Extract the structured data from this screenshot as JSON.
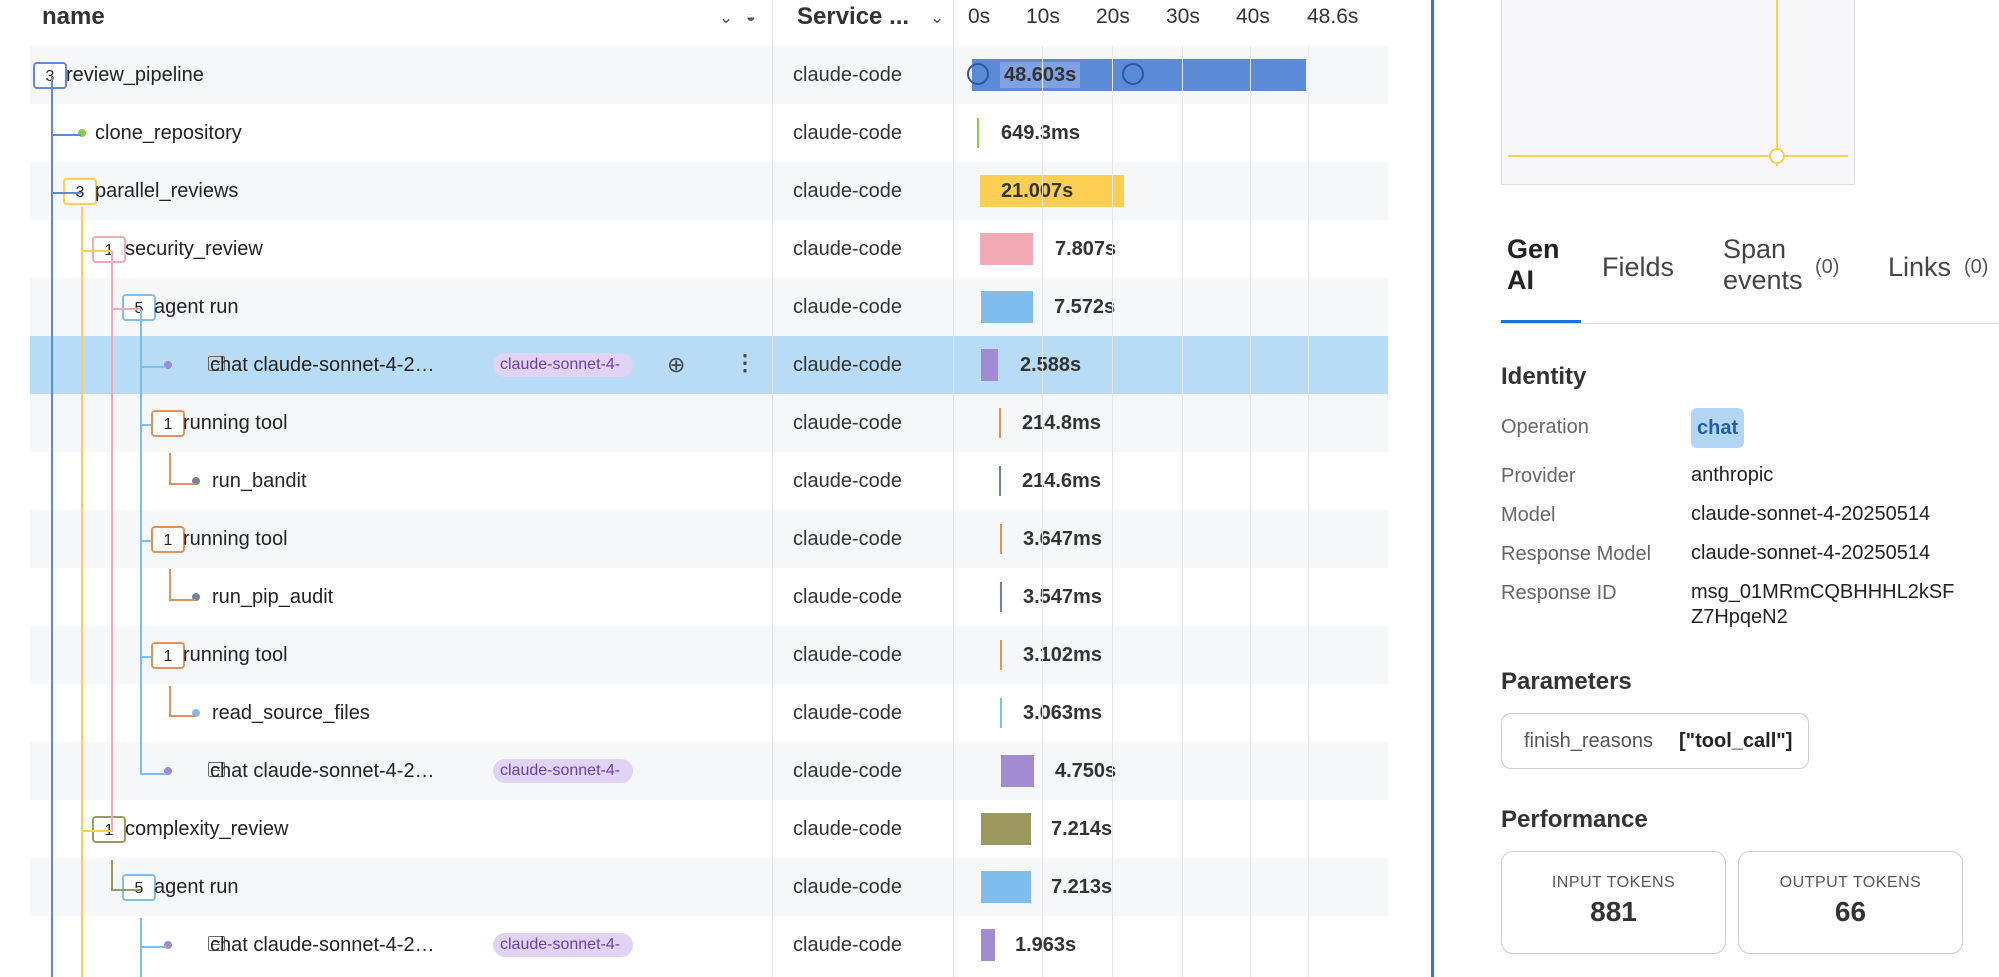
{
  "columns": {
    "name": "name",
    "service": "Service ..."
  },
  "timeline_ticks": [
    "0s",
    "10s",
    "20s",
    "30s",
    "40s",
    "48.6s"
  ],
  "rows": [
    {
      "name": "review_pipeline",
      "count": "3",
      "service": "claude-code",
      "duration": "48.603s"
    },
    {
      "name": "clone_repository",
      "service": "claude-code",
      "duration": "649.3ms"
    },
    {
      "name": "parallel_reviews",
      "count": "3",
      "service": "claude-code",
      "duration": "21.007s"
    },
    {
      "name": "security_review",
      "count": "1",
      "service": "claude-code",
      "duration": "7.807s"
    },
    {
      "name": "agent run",
      "count": "5",
      "service": "claude-code",
      "duration": "7.572s"
    },
    {
      "name": "chat claude-sonnet-4-2…",
      "chip": "claude-sonnet-4-",
      "service": "claude-code",
      "duration": "2.588s"
    },
    {
      "name": "running tool",
      "count": "1",
      "service": "claude-code",
      "duration": "214.8ms"
    },
    {
      "name": "run_bandit",
      "service": "claude-code",
      "duration": "214.6ms"
    },
    {
      "name": "running tool",
      "count": "1",
      "service": "claude-code",
      "duration": "3.647ms"
    },
    {
      "name": "run_pip_audit",
      "service": "claude-code",
      "duration": "3.547ms"
    },
    {
      "name": "running tool",
      "count": "1",
      "service": "claude-code",
      "duration": "3.102ms"
    },
    {
      "name": "read_source_files",
      "service": "claude-code",
      "duration": "3.063ms"
    },
    {
      "name": "chat claude-sonnet-4-2…",
      "chip": "claude-sonnet-4-",
      "service": "claude-code",
      "duration": "4.750s"
    },
    {
      "name": "complexity_review",
      "count": "1",
      "service": "claude-code",
      "duration": "7.214s"
    },
    {
      "name": "agent run",
      "count": "5",
      "service": "claude-code",
      "duration": "7.213s"
    },
    {
      "name": "chat claude-sonnet-4-2…",
      "chip": "claude-sonnet-4-",
      "service": "claude-code",
      "duration": "1.963s"
    }
  ],
  "colors": {
    "blue": "#5b8ad6",
    "yellow": "#fccf52",
    "pink": "#f1a9b4",
    "lightblue": "#7fbdee",
    "purple": "#a28bd0",
    "orange": "#e0915c",
    "slate": "#6f84a0",
    "olive": "#9d9760",
    "green": "#8ccf45"
  },
  "panel": {
    "tabs": [
      {
        "label": "Gen AI",
        "active": true
      },
      {
        "label": "Fields"
      },
      {
        "label": "Span events",
        "count": "(0)"
      },
      {
        "label": "Links",
        "count": "(0)"
      }
    ],
    "identity": {
      "title": "Identity",
      "operation_label": "Operation",
      "operation_value": "chat",
      "provider_label": "Provider",
      "provider_value": "anthropic",
      "model_label": "Model",
      "model_value": "claude-sonnet-4-20250514",
      "response_model_label": "Response Model",
      "response_model_value": "claude-sonnet-4-20250514",
      "response_id_label": "Response ID",
      "response_id_value": "msg_01MRmCQBHHHL2kSFZ7HpqeN2"
    },
    "parameters": {
      "title": "Parameters",
      "key": "finish_reasons",
      "value": "[\"tool_call\"]"
    },
    "performance": {
      "title": "Performance",
      "input_label": "INPUT TOKENS",
      "input_value": "881",
      "output_label": "OUTPUT TOKENS",
      "output_value": "66"
    }
  }
}
